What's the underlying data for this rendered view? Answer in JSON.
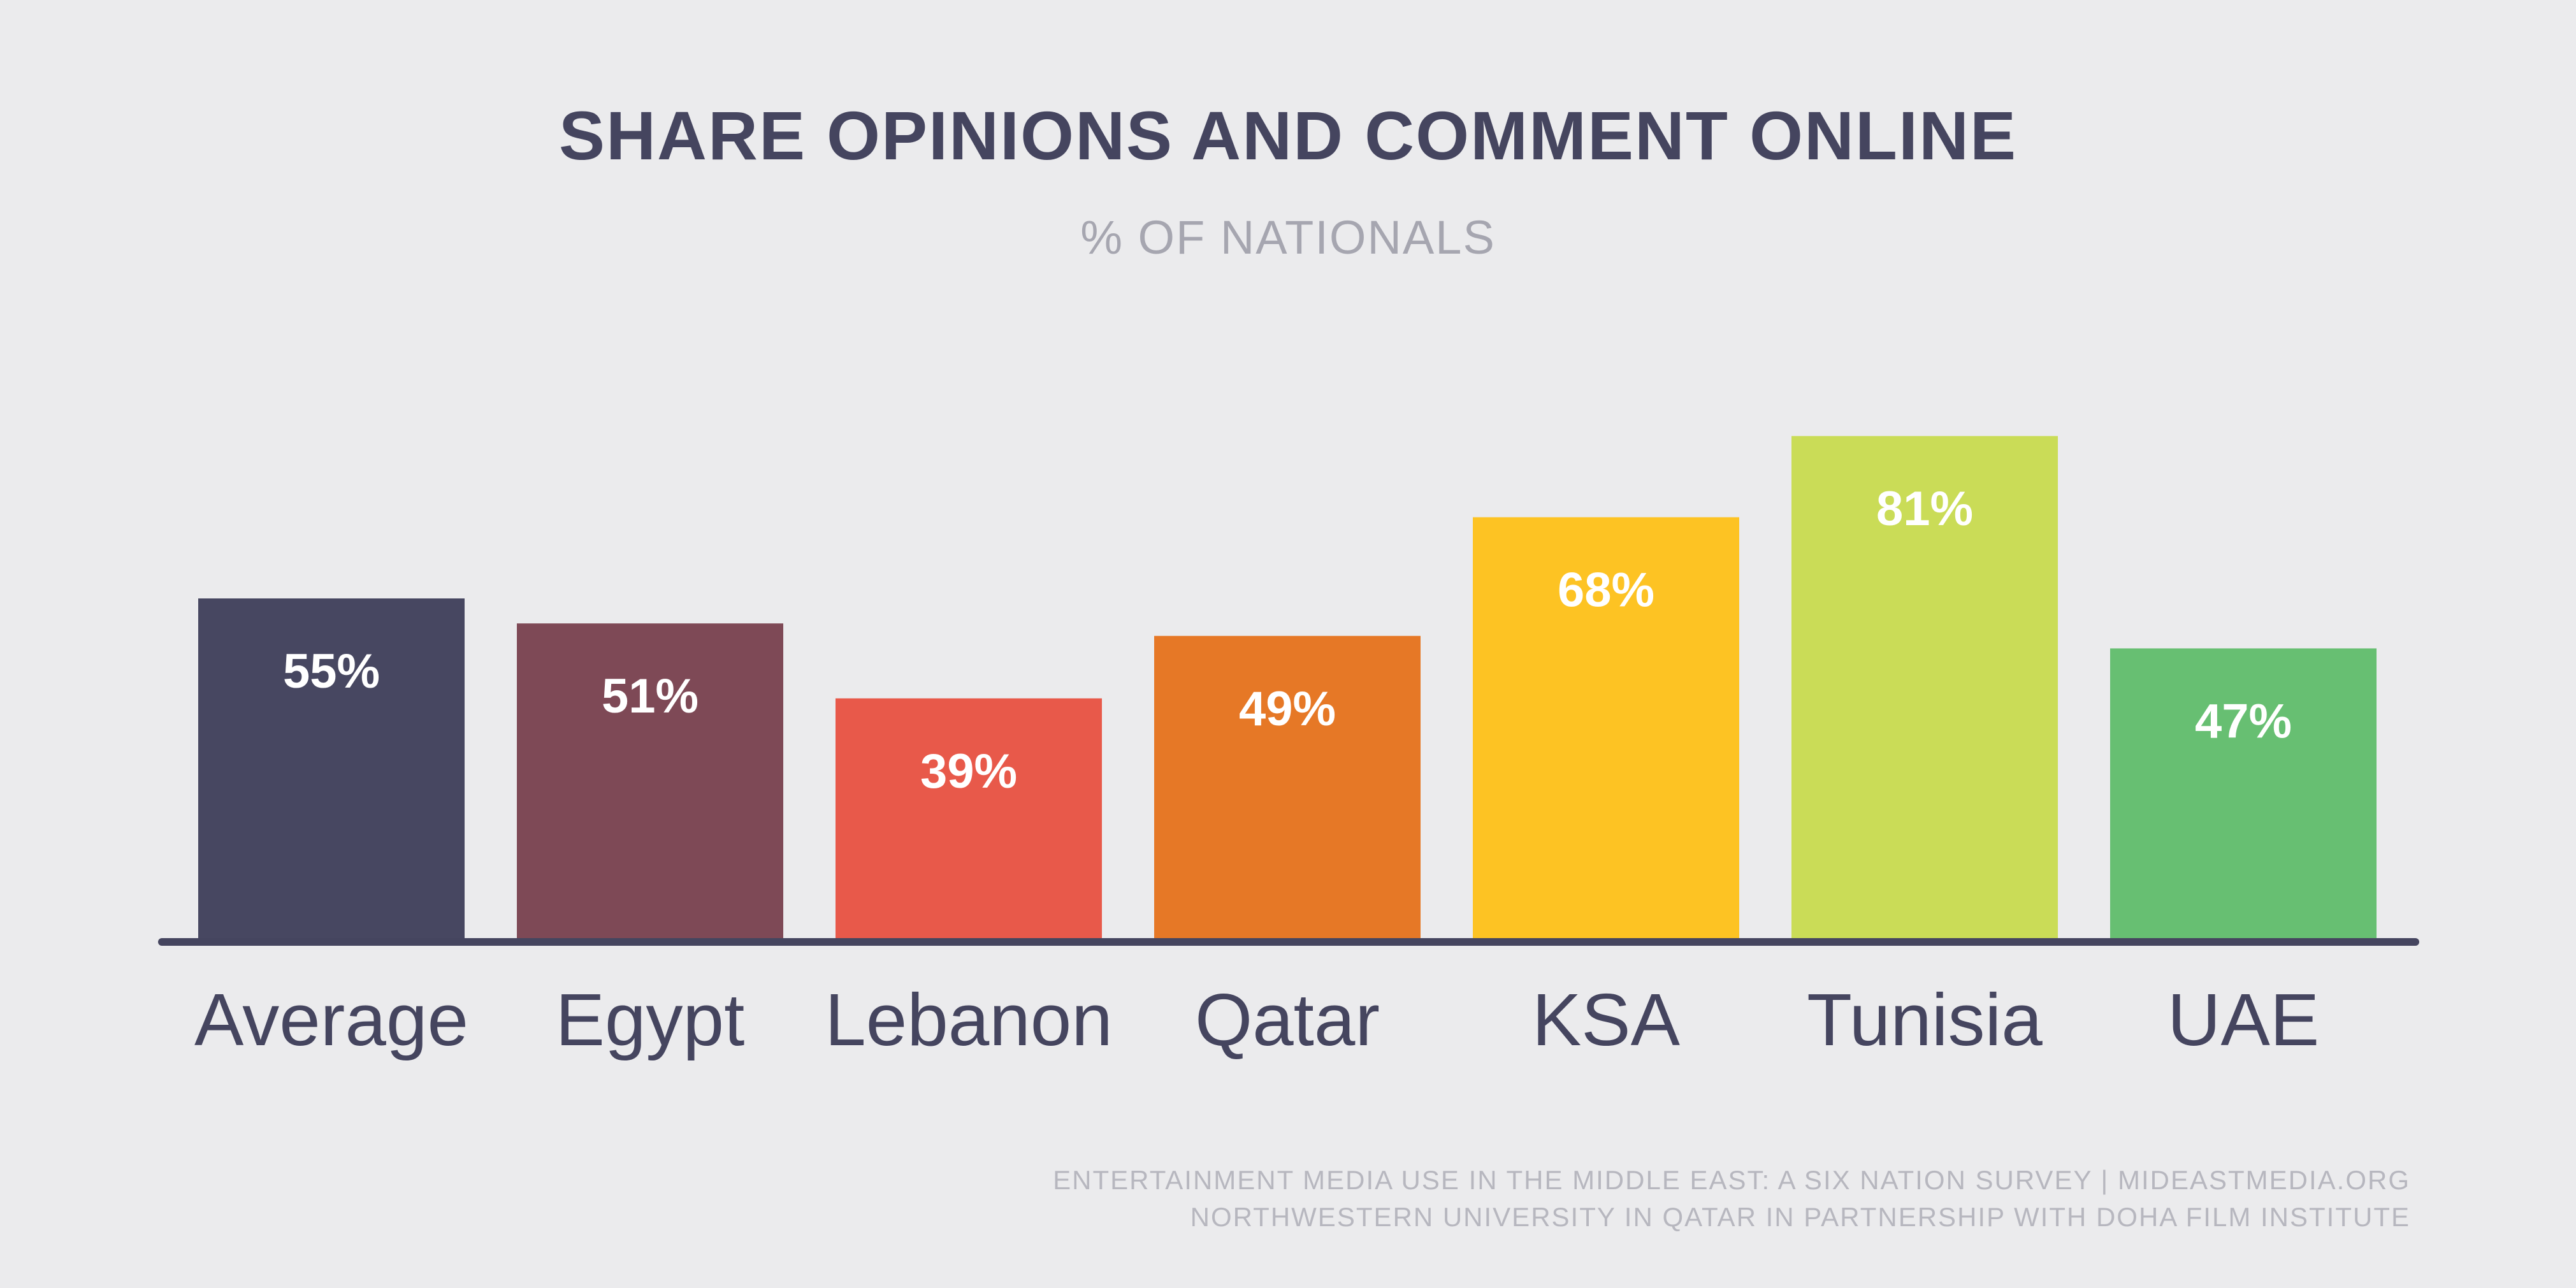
{
  "chart_data": {
    "type": "bar",
    "title": "SHARE OPINIONS AND COMMENT ONLINE",
    "subtitle": "% OF NATIONALS",
    "categories": [
      "Average",
      "Egypt",
      "Lebanon",
      "Qatar",
      "KSA",
      "Tunisia",
      "UAE"
    ],
    "values": [
      55,
      51,
      39,
      49,
      68,
      81,
      47
    ],
    "value_labels": [
      "55%",
      "51%",
      "39%",
      "49%",
      "68%",
      "81%",
      "47%"
    ],
    "colors": [
      "#474761",
      "#7E4956",
      "#E8594A",
      "#E67826",
      "#FDC323",
      "#CADC57",
      "#67BF72"
    ],
    "ylim": [
      0,
      100
    ],
    "grid": false,
    "legend": "none"
  },
  "source": {
    "line1": "ENTERTAINMENT MEDIA USE IN THE MIDDLE EAST: A SIX NATION SURVEY | MIDEASTMEDIA.ORG",
    "line2": "NORTHWESTERN UNIVERSITY IN QATAR IN PARTNERSHIP WITH DOHA FILM INSTITUTE"
  },
  "colors": {
    "background": "#EBEBED",
    "text": "#45455F",
    "subtitle": "#A6A6B0",
    "axis": "#45455F",
    "bar_label": "#FFFFFF"
  }
}
